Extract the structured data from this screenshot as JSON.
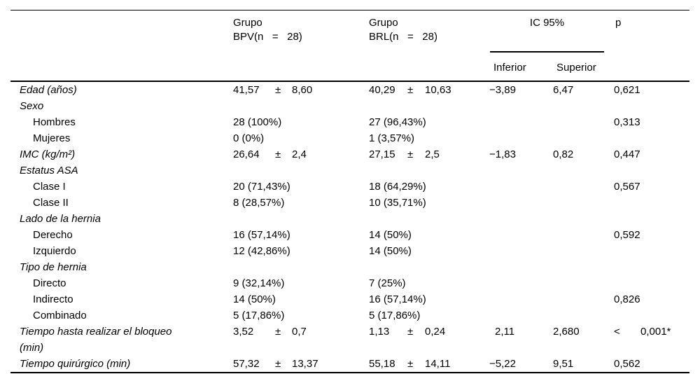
{
  "colors": {
    "background": "#ffffff",
    "text": "#000000",
    "rule": "#000000"
  },
  "table": {
    "pm": "±",
    "header": {
      "group_bpv": "Grupo\nBPV(n   =   28)",
      "group_brl": "Grupo\nBRL(n   =   28)",
      "ic95": "IC 95%",
      "inferior": "Inferior",
      "superior": "Superior",
      "p": "p"
    },
    "rows": [
      {
        "label": "Edad (años)",
        "bpv_mean": "41,57",
        "bpv_sd": "8,60",
        "brl_mean": "40,29",
        "brl_sd": "10,63",
        "inf": "−3,89",
        "sup": "6,47",
        "p": "0,621"
      },
      {
        "label": "Sexo"
      },
      {
        "label": "Hombres",
        "bpv": "28 (100%)",
        "brl": "27 (96,43%)",
        "p": "0,313"
      },
      {
        "label": "Mujeres",
        "bpv": "0 (0%)",
        "brl": "1 (3,57%)"
      },
      {
        "label": "IMC (kg/m²)",
        "bpv_mean": "26,64",
        "bpv_sd": "2,4",
        "brl_mean": "27,15",
        "brl_sd": "2,5",
        "inf": "−1,83",
        "sup": "0,82",
        "p": "0,447"
      },
      {
        "label": "Estatus ASA"
      },
      {
        "label": "Clase I",
        "bpv": "20 (71,43%)",
        "brl": "18 (64,29%)",
        "p": "0,567"
      },
      {
        "label": "Clase II",
        "bpv": "8 (28,57%)",
        "brl": "10 (35,71%)"
      },
      {
        "label": "Lado de la hernia"
      },
      {
        "label": "Derecho",
        "bpv": "16 (57,14%)",
        "brl": "14 (50%)",
        "p": "0,592"
      },
      {
        "label": "Izquierdo",
        "bpv": "12 (42,86%)",
        "brl": "14 (50%)"
      },
      {
        "label": "Tipo de hernia"
      },
      {
        "label": "Directo",
        "bpv": "9 (32,14%)",
        "brl": "7 (25%)"
      },
      {
        "label": "Indirecto",
        "bpv": "14 (50%)",
        "brl": "16 (57,14%)",
        "p": "0,826"
      },
      {
        "label": "Combinado",
        "bpv": "5 (17,86%)",
        "brl": "5 (17,86%)"
      },
      {
        "label": "Tiempo hasta realizar el bloqueo\n(min)",
        "bpv_mean": "3,52",
        "bpv_sd": "0,7",
        "brl_mean": "1,13",
        "brl_sd": "0,24",
        "inf": "2,11",
        "sup": "2,680",
        "p_lt": "<",
        "p_val": "0,001*"
      },
      {
        "label": "Tiempo quirúrgico (min)",
        "bpv_mean": "57,32",
        "bpv_sd": "13,37",
        "brl_mean": "55,18",
        "brl_sd": "14,11",
        "inf": "−5,22",
        "sup": "9,51",
        "p": "0,562"
      }
    ]
  }
}
